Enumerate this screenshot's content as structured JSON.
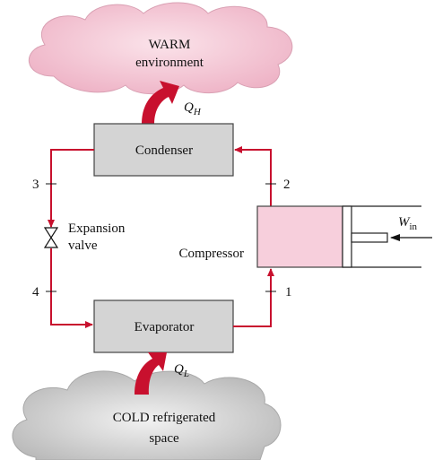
{
  "warm": {
    "line1": "WARM",
    "line2": "environment"
  },
  "q_h": {
    "symbol": "Q",
    "sub": "H"
  },
  "condenser": "Condenser",
  "evaporator": "Evaporator",
  "compressor": "Compressor",
  "valve": {
    "line1": "Expansion",
    "line2": "valve"
  },
  "w_in": {
    "symbol": "W",
    "sub": "in"
  },
  "q_l": {
    "symbol": "Q",
    "sub": "L"
  },
  "states": [
    "1",
    "2",
    "3",
    "4"
  ],
  "cold": {
    "line1": "COLD refrigerated",
    "line2": "space"
  }
}
